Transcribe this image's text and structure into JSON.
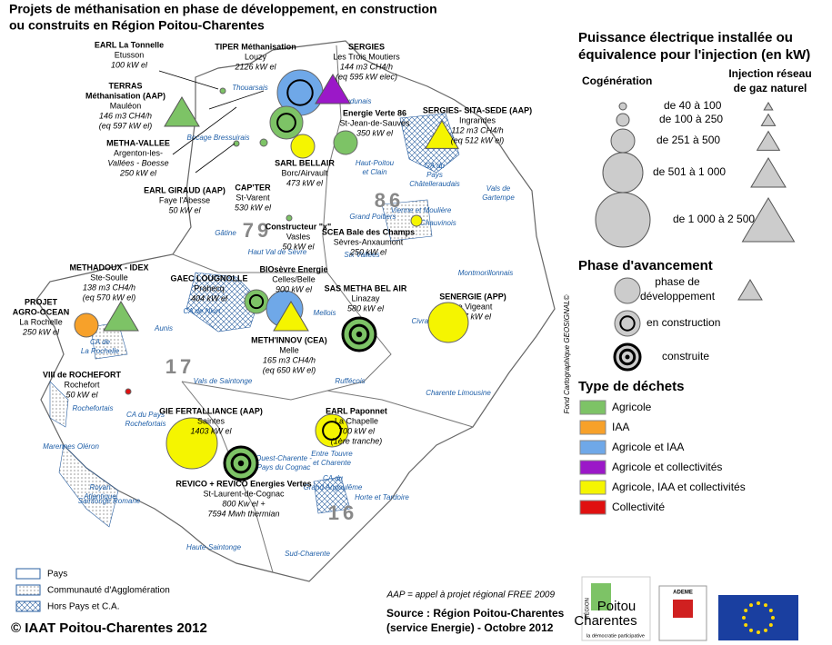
{
  "title": [
    "Projets de méthanisation en phase de développement, en construction",
    "ou construits en Région Poitou-Charentes"
  ],
  "projects": [
    {
      "lines": [
        "EARL La Tonnelle",
        "Etusson",
        "100 kW el"
      ]
    },
    {
      "lines": [
        "TIPER Méthanisation",
        "Louzy",
        "2126 kW el"
      ]
    },
    {
      "lines": [
        "SERGIES",
        "Les Trois Moutiers",
        "144 m3 CH4/h",
        "(eq 595 kW elec)"
      ]
    },
    {
      "lines": [
        "TERRAS",
        "Méthanisation (AAP)",
        "Mauléon",
        "146 m3 CH4/h",
        "(eq 597 kW el)"
      ]
    },
    {
      "lines": [
        "METHA-VALLEE",
        "Argenton-les-",
        "Vallées - Boesse",
        "250 kW el"
      ]
    },
    {
      "lines": [
        "Energie Verte 86",
        "St-Jean-de-Sauves",
        "350 kW el"
      ]
    },
    {
      "lines": [
        "SERGIES- SITA-SEDE (AAP)",
        "Ingrandes",
        "112 m3 CH4/h",
        "(eq 512 kW el)"
      ]
    },
    {
      "lines": [
        "SARL BELLAIR",
        "Borc/Airvault",
        "473 kW el"
      ]
    },
    {
      "lines": [
        "EARL GIRAUD (AAP)",
        "Faye l'Abesse",
        "50 kW el"
      ]
    },
    {
      "lines": [
        "CAP'TER",
        "St-Varent",
        "530 kW el"
      ]
    },
    {
      "lines": [
        "Constructeur \"x\"",
        "Vasles",
        "50 kW el"
      ]
    },
    {
      "lines": [
        "SCEA Bale des Champs",
        "Sèvres-Anxaumont",
        "250 kW el"
      ]
    },
    {
      "lines": [
        "METHADOUX - IDEX",
        "Ste-Soulle",
        "138 m3 CH4/h",
        "(eq 570 kW el)"
      ]
    },
    {
      "lines": [
        "GAEC LOUGNOLLE",
        "Prahecq",
        "404 kW el"
      ]
    },
    {
      "lines": [
        "BIOsèvre Energie",
        "Celles/Belle",
        "900 kW el"
      ]
    },
    {
      "lines": [
        "PROJET",
        "AGRO-OCEAN",
        "La Rochelle",
        "250 kW el"
      ]
    },
    {
      "lines": [
        "SAS METHA BEL AIR",
        "Linazay",
        "580 kW el"
      ]
    },
    {
      "lines": [
        "SENERGIE (APP)",
        "Le Vigeant",
        "527 kW el"
      ]
    },
    {
      "lines": [
        "METH'INNOV (CEA)",
        "Melle",
        "165 m3 CH4/h",
        "(eq 650 kW el)"
      ]
    },
    {
      "lines": [
        "VIII de ROCHEFORT",
        "Rochefort",
        "50 kW el"
      ]
    },
    {
      "lines": [
        "GIE FERTALLIANCE (AAP)",
        "Saintes",
        "1403 kW el"
      ]
    },
    {
      "lines": [
        "EARL Paponnet",
        "La Chapelle",
        "700 kW el",
        "(1ère tranche)"
      ]
    },
    {
      "lines": [
        "REVICO + REVICO Energies Vertes",
        "St-Laurent-de-Cognac",
        "800 Kw el +",
        "7594 Mwh thermian"
      ]
    }
  ],
  "departments": [
    "79",
    "86",
    "17",
    "16"
  ],
  "areas": [
    [
      "Thouarsais"
    ],
    [
      "Bocage Bressuirais"
    ],
    [
      "Loudunais"
    ],
    [
      "Haut-Poitou",
      "et Clain"
    ],
    [
      "CA du",
      "Pays",
      "Châtelleraudais"
    ],
    [
      "Vals de",
      "Gartempe"
    ],
    [
      "Grand Poitiers"
    ],
    [
      "Vienne et Moulière"
    ],
    [
      "Chauvinois"
    ],
    [
      "Gâtine"
    ],
    [
      "Mellois"
    ],
    [
      "Six Vallées"
    ],
    [
      "Montmorillonnais"
    ],
    [
      "Haut Val de Sèvre"
    ],
    [
      "CA de Niort"
    ],
    [
      "Aunis"
    ],
    [
      "CA de",
      "La Rochelle"
    ],
    [
      "Civraisien"
    ],
    [
      "Ruffécois"
    ],
    [
      "Charente Limousine"
    ],
    [
      "Vals de Saintonge"
    ],
    [
      "CA du Pays",
      "Rochefortais"
    ],
    [
      "Rochefortais"
    ],
    [
      "Marennes Oléron"
    ],
    [
      "Saintonge Romane"
    ],
    [
      "Royan",
      "Atlantique"
    ],
    [
      "Ouest-Charente -",
      "Pays du Cognac"
    ],
    [
      "Entre Touvre",
      "et Charente"
    ],
    [
      "CA du",
      "Grand Angoulême"
    ],
    [
      "Horte et Tardoire"
    ],
    [
      "Haute-Saintonge"
    ],
    [
      "Sud-Charente"
    ]
  ],
  "legend": {
    "power_title": [
      "Puissance électrique installée ou",
      "équivalence pour l'injection (en kW)"
    ],
    "cogeneration": "Cogénération",
    "injection": [
      "Injection réseau",
      "de gaz naturel"
    ],
    "classes": [
      "de 40 à 100",
      "de 100 à 250",
      "de 251 à 500",
      "de 501 à 1 000",
      "de 1 000 à 2 500"
    ],
    "phase_title": "Phase d'avancement",
    "phases": [
      [
        "phase de",
        "développement"
      ],
      [
        "en construction"
      ],
      [
        "construite"
      ]
    ],
    "waste_title": "Type de déchets",
    "waste_types": [
      {
        "label": "Agricole",
        "color": "#7dc366"
      },
      {
        "label": "IAA",
        "color": "#f7a12a"
      },
      {
        "label": "Agricole et IAA",
        "color": "#6fa8e8"
      },
      {
        "label": "Agricole et collectivités",
        "color": "#9b18c8"
      },
      {
        "label": "Agricole, IAA et collectivités",
        "color": "#f5f500"
      },
      {
        "label": "Collectivité",
        "color": "#e01010"
      }
    ]
  },
  "map_legend": [
    "Pays",
    "Communauté d'Agglomération",
    "Hors Pays et C.A."
  ],
  "note": "AAP = appel à projet régional FREE 2009",
  "source": [
    "Source : Région Poitou-Charentes",
    "(service Energie) - Octobre 2012"
  ],
  "copyright": "© IAAT Poitou-Charentes 2012",
  "basemap": "Fond Cartographique GEOSIGNAL©",
  "logos": {
    "region": "RÉGION",
    "region_name": [
      "Poitou",
      "Charentes"
    ],
    "region_tagline": "la démocratie participative",
    "ademe": "ADEME"
  }
}
